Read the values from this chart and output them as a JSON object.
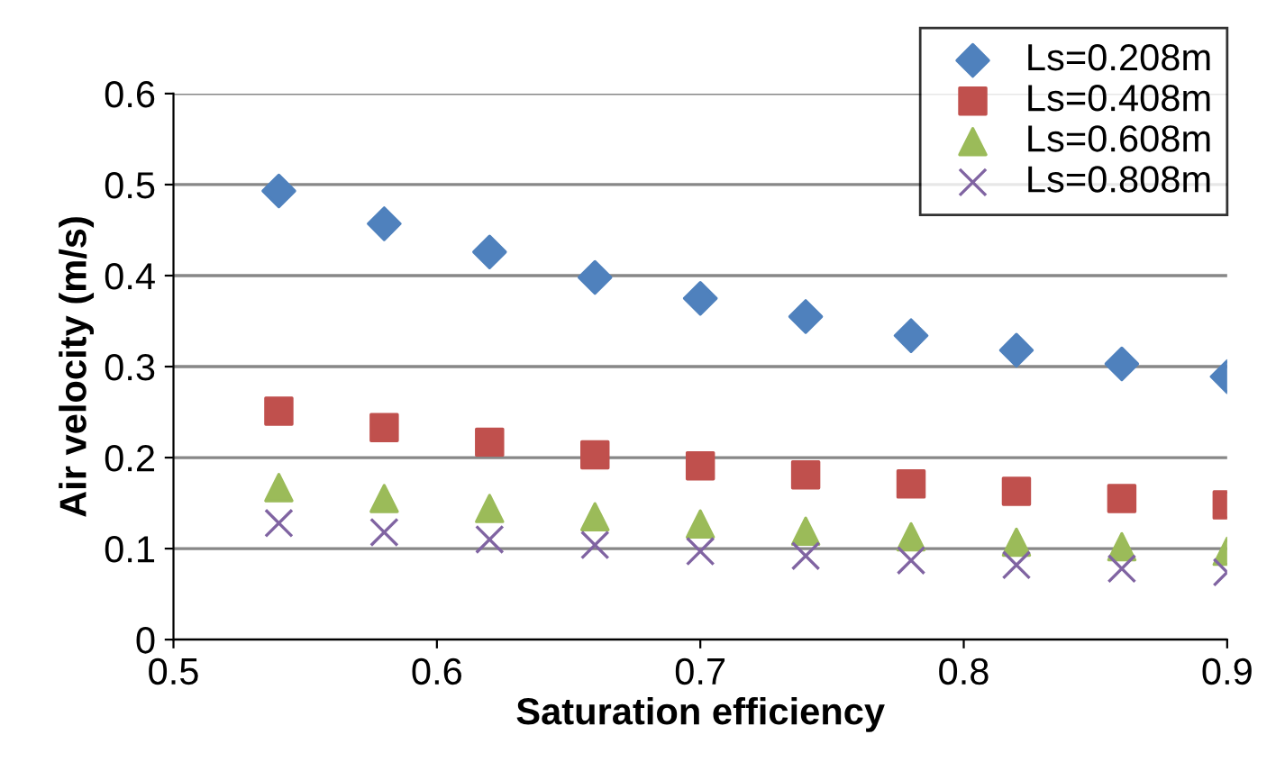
{
  "chart_data": {
    "type": "scatter",
    "xlabel": "Saturation efficiency",
    "ylabel": "Air velocity (m/s)",
    "x": [
      0.54,
      0.58,
      0.62,
      0.66,
      0.7,
      0.74,
      0.78,
      0.82,
      0.86,
      0.9
    ],
    "series": [
      {
        "name": "Ls=0.208m",
        "color": "#4f81bd",
        "marker": "diamond",
        "values": [
          0.493,
          0.457,
          0.426,
          0.398,
          0.375,
          0.355,
          0.334,
          0.318,
          0.303,
          0.289
        ]
      },
      {
        "name": "Ls=0.408m",
        "color": "#c0504d",
        "marker": "square",
        "values": [
          0.251,
          0.233,
          0.217,
          0.203,
          0.191,
          0.181,
          0.171,
          0.163,
          0.155,
          0.148
        ]
      },
      {
        "name": "Ls=0.608m",
        "color": "#9bbb59",
        "marker": "triangle",
        "values": [
          0.167,
          0.155,
          0.144,
          0.135,
          0.127,
          0.119,
          0.113,
          0.107,
          0.102,
          0.097
        ]
      },
      {
        "name": "Ls=0.808m",
        "color": "#8064a2",
        "marker": "cross",
        "values": [
          0.128,
          0.118,
          0.11,
          0.104,
          0.097,
          0.092,
          0.087,
          0.082,
          0.078,
          0.074
        ]
      }
    ],
    "xlim": [
      0.5,
      0.9
    ],
    "xticks": [
      0.5,
      0.6,
      0.7,
      0.8,
      0.9
    ],
    "ylim": [
      0,
      0.6
    ],
    "yticks": [
      0,
      0.1,
      0.2,
      0.3,
      0.4,
      0.5,
      0.6
    ],
    "grid": "y",
    "legend": "top right"
  }
}
